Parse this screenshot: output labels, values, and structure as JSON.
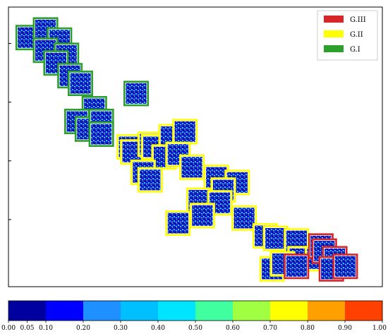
{
  "chart_data": {
    "type": "scatter",
    "title": "",
    "xlabel": "",
    "ylabel": "",
    "xlim": [
      0,
      1
    ],
    "ylim": [
      0,
      1
    ],
    "grid": false,
    "legend_position": "top-right",
    "legend": [
      {
        "label": "G.III",
        "color": "#d62728"
      },
      {
        "label": "G.II",
        "color": "#ffff00"
      },
      {
        "label": "G.I",
        "color": "#2ca02c"
      }
    ],
    "series": [
      {
        "name": "G.I",
        "color": "#2ca02c",
        "points": [
          {
            "x": 0.02,
            "y": 0.93
          },
          {
            "x": 0.07,
            "y": 0.96
          },
          {
            "x": 0.11,
            "y": 0.92
          },
          {
            "x": 0.07,
            "y": 0.88
          },
          {
            "x": 0.13,
            "y": 0.86
          },
          {
            "x": 0.1,
            "y": 0.83
          },
          {
            "x": 0.14,
            "y": 0.78
          },
          {
            "x": 0.17,
            "y": 0.75
          },
          {
            "x": 0.21,
            "y": 0.65
          },
          {
            "x": 0.16,
            "y": 0.6
          },
          {
            "x": 0.19,
            "y": 0.57
          },
          {
            "x": 0.23,
            "y": 0.6
          },
          {
            "x": 0.23,
            "y": 0.55
          },
          {
            "x": 0.33,
            "y": 0.71
          }
        ]
      },
      {
        "name": "G.II",
        "color": "#ffff00",
        "points": [
          {
            "x": 0.31,
            "y": 0.5
          },
          {
            "x": 0.32,
            "y": 0.48
          },
          {
            "x": 0.37,
            "y": 0.51
          },
          {
            "x": 0.38,
            "y": 0.5
          },
          {
            "x": 0.43,
            "y": 0.54
          },
          {
            "x": 0.47,
            "y": 0.56
          },
          {
            "x": 0.41,
            "y": 0.46
          },
          {
            "x": 0.45,
            "y": 0.47
          },
          {
            "x": 0.35,
            "y": 0.4
          },
          {
            "x": 0.37,
            "y": 0.37
          },
          {
            "x": 0.49,
            "y": 0.42
          },
          {
            "x": 0.56,
            "y": 0.38
          },
          {
            "x": 0.62,
            "y": 0.36
          },
          {
            "x": 0.58,
            "y": 0.33
          },
          {
            "x": 0.51,
            "y": 0.29
          },
          {
            "x": 0.57,
            "y": 0.28
          },
          {
            "x": 0.52,
            "y": 0.23
          },
          {
            "x": 0.45,
            "y": 0.2
          },
          {
            "x": 0.64,
            "y": 0.22
          },
          {
            "x": 0.7,
            "y": 0.15
          },
          {
            "x": 0.73,
            "y": 0.14
          },
          {
            "x": 0.79,
            "y": 0.13
          },
          {
            "x": 0.8,
            "y": 0.06
          },
          {
            "x": 0.72,
            "y": 0.02
          },
          {
            "x": 0.75,
            "y": 0.04
          },
          {
            "x": 0.85,
            "y": 0.06
          }
        ]
      },
      {
        "name": "G.III",
        "color": "#d62728",
        "points": [
          {
            "x": 0.86,
            "y": 0.11
          },
          {
            "x": 0.87,
            "y": 0.09
          },
          {
            "x": 0.9,
            "y": 0.06
          },
          {
            "x": 0.89,
            "y": 0.02
          },
          {
            "x": 0.93,
            "y": 0.03
          },
          {
            "x": 0.79,
            "y": 0.03
          }
        ]
      }
    ],
    "colorbar": {
      "colors": [
        "#0000a0",
        "#0000ff",
        "#1e90ff",
        "#00bfff",
        "#00e5ff",
        "#40ff9f",
        "#9fff40",
        "#ffff00",
        "#ff9f00",
        "#ff4000",
        "#b00000"
      ],
      "tick_labels": [
        "0.00",
        "0.05",
        "0.10",
        "0.20",
        "0.30",
        "0.40",
        "0.50",
        "0.60",
        "0.70",
        "0.80",
        "0.90",
        "1.00"
      ]
    }
  }
}
